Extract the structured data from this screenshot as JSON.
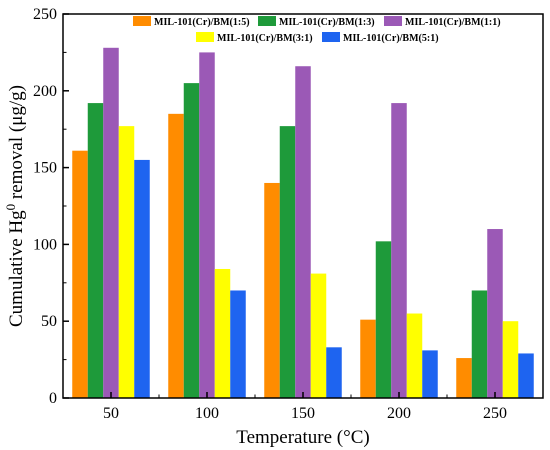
{
  "chart_data": {
    "type": "bar",
    "title": "",
    "xlabel": "Temperature (°C)",
    "ylabel": "Cumulative Hg",
    "ylabel_sup": "0",
    "ylabel_rest": " removal (μg/g)",
    "categories": [
      "50",
      "100",
      "150",
      "200",
      "250"
    ],
    "ylim": [
      0,
      250
    ],
    "yticks": [
      "0",
      "50",
      "100",
      "150",
      "200",
      "250"
    ],
    "grid": false,
    "legend_position": "top",
    "series": [
      {
        "name": "MIL-101(Cr)/BM(1:5)",
        "color": "#ff8c00",
        "values": [
          161,
          185,
          140,
          51,
          26
        ]
      },
      {
        "name": "MIL-101(Cr)/BM(1:3)",
        "color": "#1e9a3a",
        "values": [
          192,
          205,
          177,
          102,
          70
        ]
      },
      {
        "name": "MIL-101(Cr)/BM(1:1)",
        "color": "#9b59b6",
        "values": [
          228,
          225,
          216,
          192,
          110
        ]
      },
      {
        "name": "MIL-101(Cr)/BM(3:1)",
        "color": "#ffff00",
        "values": [
          177,
          84,
          81,
          55,
          50
        ]
      },
      {
        "name": "MIL-101(Cr)/BM(5:1)",
        "color": "#1e64f0",
        "values": [
          155,
          70,
          33,
          31,
          29
        ]
      }
    ]
  }
}
